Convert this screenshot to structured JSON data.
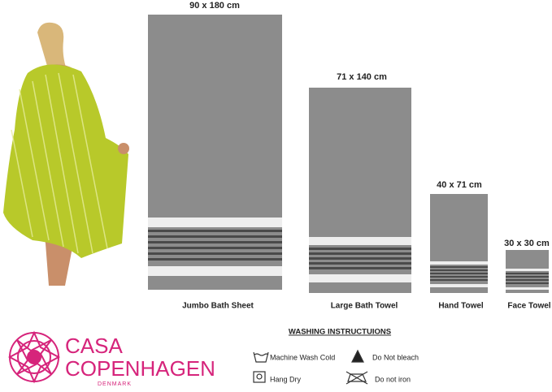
{
  "towels": [
    {
      "size": "90 x 180 cm",
      "name": "Jumbo Bath Sheet"
    },
    {
      "size": "71 x 140 cm",
      "name": "Large Bath Towel"
    },
    {
      "size": "40 x 71 cm",
      "name": "Hand Towel"
    },
    {
      "size": "30 x 30 cm",
      "name": "Face Towel"
    }
  ],
  "brand": {
    "line1": "CASA",
    "line2": "COPENHAGEN",
    "line3": "DENMARK"
  },
  "washing": {
    "title": "WASHING INSTRUCTUIONS",
    "items": [
      "Machine Wash Cold",
      "Do Not bleach",
      "Hang Dry",
      "Do not iron"
    ]
  }
}
